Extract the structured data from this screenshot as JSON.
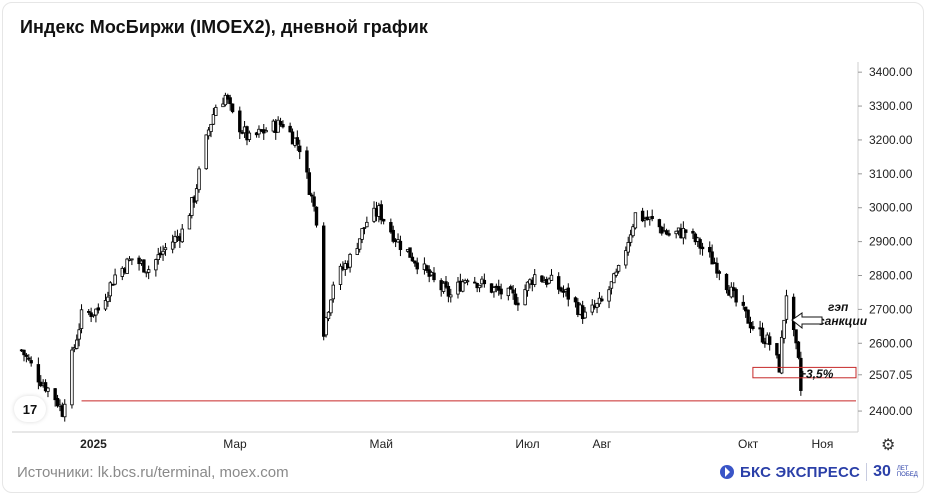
{
  "title": "Индекс МосБиржи (IMOEX2), дневной график",
  "footer": {
    "sources": "Источники: lk.bcs.ru/terminal, moex.com",
    "brand": "БКС ЭКСПРЕСС",
    "brand_30": "30",
    "brand_small": "ЛЕТ ПОБЕД"
  },
  "tv_logo": "17",
  "settings_icon": "gear-icon",
  "colors": {
    "candle": "#000000",
    "level_line": "#c62828",
    "axis_text": "#222222"
  },
  "chart_data": {
    "type": "candlestick",
    "y_axis": {
      "ticks": [
        "2400.00",
        "2507.05",
        "2600.00",
        "2700.00",
        "2800.00",
        "2900.00",
        "3000.00",
        "3100.00",
        "3200.00",
        "3300.00",
        "3400.00"
      ],
      "range": [
        2350,
        3430
      ],
      "position": "right"
    },
    "x_axis": {
      "labels": [
        "2025",
        "Мар",
        "Май",
        "Июл",
        "Авг",
        "Окт",
        "Ноя"
      ]
    },
    "horizontal_line": {
      "value": 2430
    },
    "annotations": {
      "gap_label": "гэп\nсанкции",
      "pct_label": "+3,5%"
    },
    "gap_box": {
      "low": 2507,
      "high": 2520
    },
    "series": [
      {
        "date": "2024-12-02",
        "close": 2580
      },
      {
        "date": "2024-12-09",
        "close": 2500
      },
      {
        "date": "2024-12-16",
        "close": 2440
      },
      {
        "date": "2024-12-19",
        "close": 2400
      },
      {
        "date": "2024-12-23",
        "close": 2560
      },
      {
        "date": "2024-12-27",
        "close": 2680
      },
      {
        "date": "2025-01-03",
        "close": 2700
      },
      {
        "date": "2025-01-10",
        "close": 2800
      },
      {
        "date": "2025-01-17",
        "close": 2850
      },
      {
        "date": "2025-01-24",
        "close": 2820
      },
      {
        "date": "2025-01-31",
        "close": 2880
      },
      {
        "date": "2025-02-07",
        "close": 2930
      },
      {
        "date": "2025-02-12",
        "close": 3030
      },
      {
        "date": "2025-02-14",
        "close": 3100
      },
      {
        "date": "2025-02-18",
        "close": 3230
      },
      {
        "date": "2025-02-21",
        "close": 3300
      },
      {
        "date": "2025-02-25",
        "close": 3330
      },
      {
        "date": "2025-02-28",
        "close": 3270
      },
      {
        "date": "2025-03-07",
        "close": 3200
      },
      {
        "date": "2025-03-14",
        "close": 3230
      },
      {
        "date": "2025-03-21",
        "close": 3250
      },
      {
        "date": "2025-03-28",
        "close": 3180
      },
      {
        "date": "2025-04-04",
        "close": 2970
      },
      {
        "date": "2025-04-07",
        "close": 2640
      },
      {
        "date": "2025-04-11",
        "close": 2780
      },
      {
        "date": "2025-04-18",
        "close": 2850
      },
      {
        "date": "2025-04-25",
        "close": 2960
      },
      {
        "date": "2025-04-30",
        "close": 2990
      },
      {
        "date": "2025-05-08",
        "close": 2900
      },
      {
        "date": "2025-05-16",
        "close": 2840
      },
      {
        "date": "2025-05-23",
        "close": 2780
      },
      {
        "date": "2025-05-30",
        "close": 2740
      },
      {
        "date": "2025-06-06",
        "close": 2800
      },
      {
        "date": "2025-06-13",
        "close": 2770
      },
      {
        "date": "2025-06-20",
        "close": 2750
      },
      {
        "date": "2025-06-27",
        "close": 2730
      },
      {
        "date": "2025-07-04",
        "close": 2800
      },
      {
        "date": "2025-07-11",
        "close": 2780
      },
      {
        "date": "2025-07-18",
        "close": 2740
      },
      {
        "date": "2025-07-25",
        "close": 2680
      },
      {
        "date": "2025-08-01",
        "close": 2720
      },
      {
        "date": "2025-08-08",
        "close": 2810
      },
      {
        "date": "2025-08-15",
        "close": 2980
      },
      {
        "date": "2025-08-22",
        "close": 2960
      },
      {
        "date": "2025-08-29",
        "close": 2920
      },
      {
        "date": "2025-09-05",
        "close": 2930
      },
      {
        "date": "2025-09-12",
        "close": 2880
      },
      {
        "date": "2025-09-19",
        "close": 2820
      },
      {
        "date": "2025-09-26",
        "close": 2720
      },
      {
        "date": "2025-10-03",
        "close": 2650
      },
      {
        "date": "2025-10-10",
        "close": 2600
      },
      {
        "date": "2025-10-14",
        "close": 2530
      },
      {
        "date": "2025-10-17",
        "close": 2750
      },
      {
        "date": "2025-10-20",
        "close": 2620
      },
      {
        "date": "2025-10-22",
        "close": 2540
      },
      {
        "date": "2025-10-23",
        "close": 2460
      },
      {
        "date": "2025-10-24",
        "close": 2500
      }
    ]
  }
}
